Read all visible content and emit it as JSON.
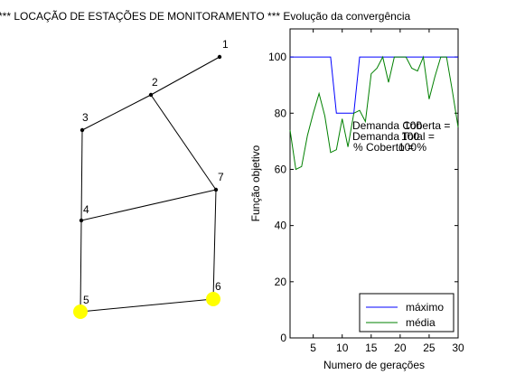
{
  "title": "*** LOCAÇÃO DE ESTAÇÕES DE MONITORAMENTO *** Evolução da convergência",
  "network": {
    "nodes": [
      {
        "id": "1",
        "label": "1",
        "highlighted": false
      },
      {
        "id": "2",
        "label": "2",
        "highlighted": false
      },
      {
        "id": "3",
        "label": "3",
        "highlighted": false
      },
      {
        "id": "4",
        "label": "4",
        "highlighted": false
      },
      {
        "id": "5",
        "label": "5",
        "highlighted": true
      },
      {
        "id": "6",
        "label": "6",
        "highlighted": true
      },
      {
        "id": "7",
        "label": "7",
        "highlighted": false
      }
    ],
    "edges": [
      [
        "1",
        "2"
      ],
      [
        "2",
        "3"
      ],
      [
        "2",
        "7"
      ],
      [
        "3",
        "4"
      ],
      [
        "4",
        "7"
      ],
      [
        "4",
        "5"
      ],
      [
        "7",
        "6"
      ],
      [
        "5",
        "6"
      ]
    ],
    "highlight_color": "#ffff00"
  },
  "chart_data": {
    "type": "line",
    "xlabel": "Numero de gerações",
    "ylabel": "Função objetivo",
    "xlim": [
      1,
      30
    ],
    "ylim": [
      0,
      110
    ],
    "xticks": [
      5,
      10,
      15,
      20,
      25,
      30
    ],
    "yticks": [
      0,
      20,
      40,
      60,
      80,
      100
    ],
    "grid": false,
    "legend_position": "bottom-right",
    "annotations": [
      "Demanda Coberta =",
      "Demanda Total =",
      "% Coberto = %",
      "100",
      "100",
      "100"
    ],
    "series": [
      {
        "name": "máximo",
        "color": "#0000ff",
        "x": [
          1,
          2,
          3,
          4,
          5,
          6,
          7,
          8,
          9,
          10,
          11,
          12,
          13,
          14,
          15,
          16,
          17,
          18,
          19,
          20,
          21,
          22,
          23,
          24,
          25,
          26,
          27,
          28,
          29,
          30
        ],
        "values": [
          100,
          100,
          100,
          100,
          100,
          100,
          100,
          100,
          80,
          80,
          80,
          80,
          100,
          100,
          100,
          100,
          100,
          100,
          100,
          100,
          100,
          100,
          100,
          100,
          100,
          100,
          100,
          100,
          100,
          100
        ]
      },
      {
        "name": "média",
        "color": "#008000",
        "x": [
          1,
          2,
          3,
          4,
          5,
          6,
          7,
          8,
          9,
          10,
          11,
          12,
          13,
          14,
          15,
          16,
          17,
          18,
          19,
          20,
          21,
          22,
          23,
          24,
          25,
          26,
          27,
          28,
          29,
          30
        ],
        "values": [
          74,
          60,
          61,
          72,
          80,
          87,
          79,
          66,
          67,
          78,
          68,
          80,
          81,
          77,
          94,
          96,
          100,
          91,
          100,
          100,
          100,
          96,
          95,
          100,
          85,
          93,
          100,
          100,
          88,
          75
        ]
      }
    ]
  }
}
